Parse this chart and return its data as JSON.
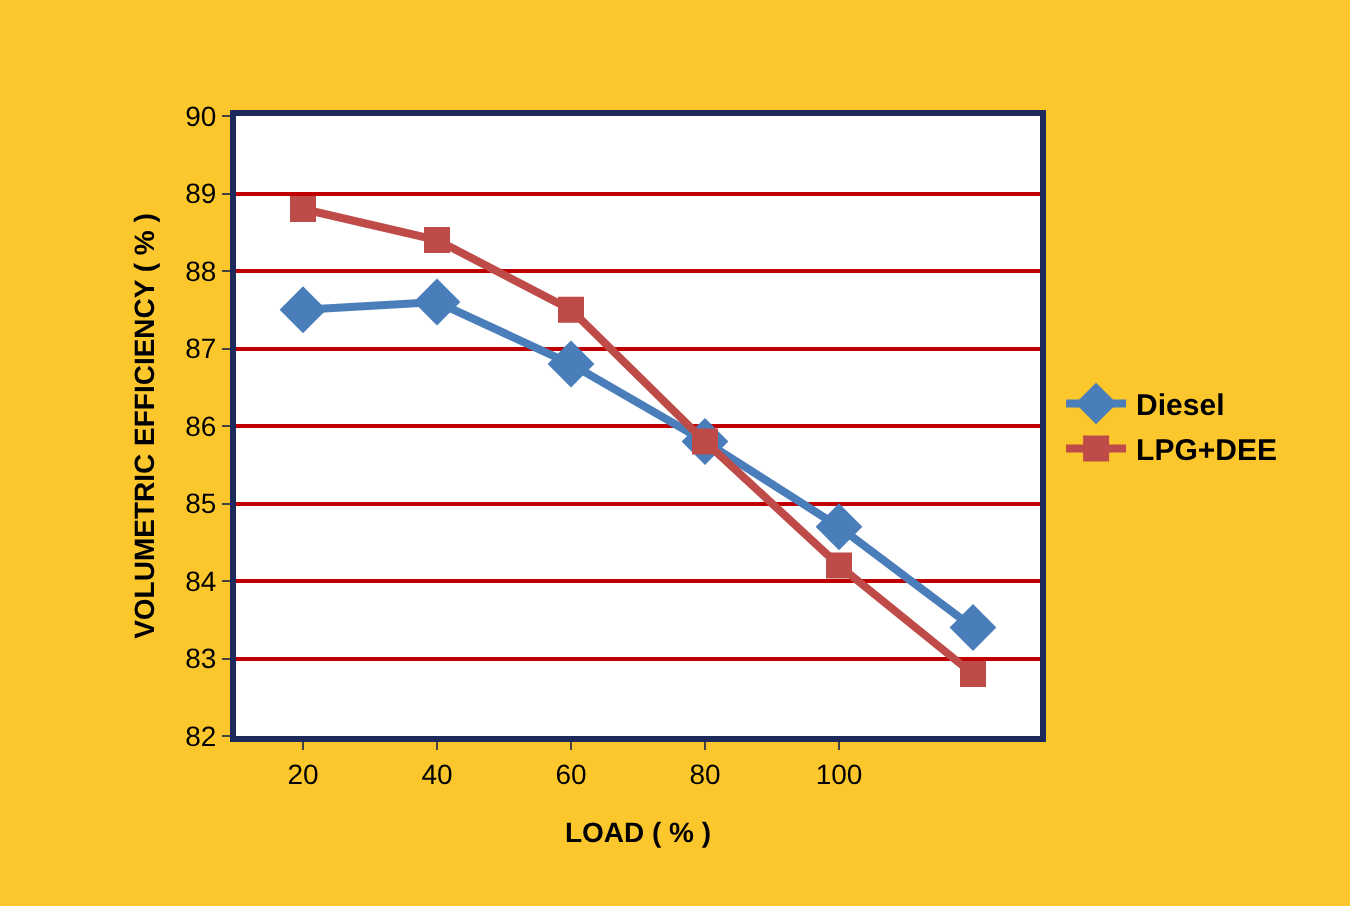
{
  "chart_data": {
    "type": "line",
    "xlabel": "LOAD ( % )",
    "ylabel": "VOLUMETRIC EFFICIENCY ( % )",
    "categories": [
      "20",
      "40",
      "60",
      "80",
      "100",
      null
    ],
    "series": [
      {
        "name": "Diesel",
        "color": "#4a7ebb",
        "marker": "diamond",
        "values": [
          87.5,
          87.6,
          86.8,
          85.8,
          84.7,
          83.4
        ]
      },
      {
        "name": "LPG+DEE",
        "color": "#be4b48",
        "marker": "square",
        "values": [
          88.8,
          88.4,
          87.5,
          85.8,
          84.2,
          82.8
        ]
      }
    ],
    "ylim": [
      82,
      90
    ],
    "yticks": [
      82,
      83,
      84,
      85,
      86,
      87,
      88,
      89,
      90
    ],
    "grid": "y",
    "legend": "right"
  }
}
